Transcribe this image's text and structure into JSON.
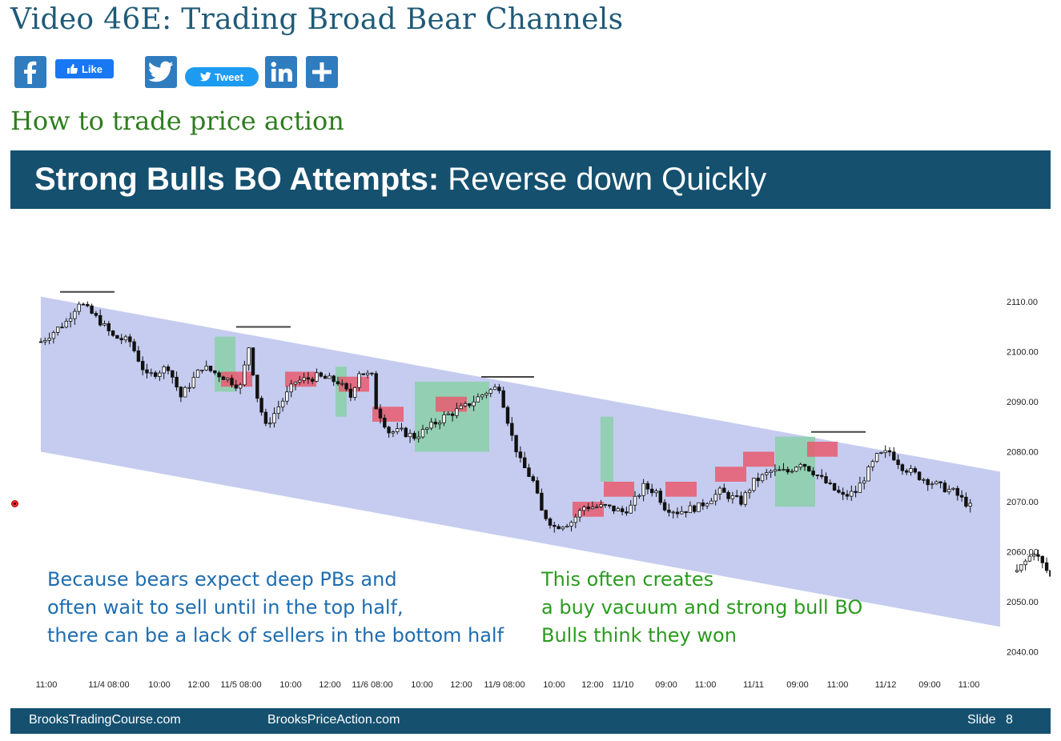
{
  "page": {
    "title": "Video 46E: Trading Broad Bear Channels",
    "subtitle": "How to trade price action"
  },
  "share": {
    "facebook_icon": "facebook-icon",
    "like_label": "Like",
    "twitter_icon": "twitter-icon",
    "tweet_label": "Tweet",
    "linkedin_icon": "linkedin-icon",
    "more_icon": "plus-icon",
    "colors": {
      "square": "#2f7cbf",
      "like": "#1877f2",
      "tweet": "#1d9bf0"
    }
  },
  "slide": {
    "title_bold": "Strong Bulls BO Attempts:",
    "title_rest": " Reverse down Quickly",
    "header_color": "#15506f",
    "footer": {
      "site1": "BrooksTradingCourse.com",
      "site2": "BrooksPriceAction.com",
      "slide_label": "Slide",
      "slide_number": "8"
    },
    "note_blue": [
      "Because bears expect deep PBs and",
      "often wait to sell until in the top half,",
      "there can be a lack of sellers in the bottom half"
    ],
    "note_green": [
      "This often creates",
      "a buy vacuum and strong bull BO",
      "Bulls think they won"
    ]
  },
  "chart_data": {
    "type": "candlestick",
    "y_ticks": [
      "2110.00",
      "2100.00",
      "2090.00",
      "2080.00",
      "2070.00",
      "2060.00",
      "2050.00",
      "2040.00"
    ],
    "ylim": [
      2038,
      2116
    ],
    "x_ticks": [
      "11:00",
      "11/4 08:00",
      "10:00",
      "12:00",
      "11/5 08:00",
      "10:00",
      "12:00",
      "11/6 08:00",
      "10:00",
      "12:00",
      "11/9 08:00",
      "10:00",
      "12:00",
      "11/10",
      "09:00",
      "11:00",
      "11/11",
      "09:00",
      "11:00",
      "11/12",
      "09:00",
      "11:00"
    ],
    "channel": {
      "upper": [
        2111,
        2076
      ],
      "lower": [
        2080,
        2045
      ],
      "color": "#c2c9ee"
    },
    "resistance_highs": [
      2111,
      2104,
      2094,
      2083
    ],
    "green_zones": [
      [
        2103,
        2092
      ],
      [
        2097,
        2087
      ],
      [
        2094,
        2080
      ],
      [
        2087,
        2074
      ],
      [
        2083,
        2069
      ]
    ],
    "red_zones": [
      [
        2096,
        2093
      ],
      [
        2096,
        2093
      ],
      [
        2095,
        2092
      ],
      [
        2089,
        2086
      ],
      [
        2091,
        2088
      ],
      [
        2070,
        2067
      ],
      [
        2074,
        2071
      ],
      [
        2074,
        2071
      ],
      [
        2077,
        2074
      ],
      [
        2080,
        2077
      ],
      [
        2082,
        2079
      ]
    ],
    "grid": false
  }
}
